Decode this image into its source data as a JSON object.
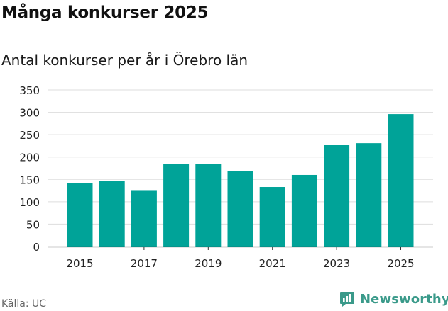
{
  "title": "Många konkurser 2025",
  "subtitle": "Antal konkurser per år i Örebro län",
  "source": "Källa: UC",
  "brand": {
    "name": "Newsworthy",
    "logo_icon": "newsworthy-chart-icon",
    "color": "#3a9a8a"
  },
  "colors": {
    "bar": "#00a398",
    "grid": "#dddddd",
    "axis": "#333333"
  },
  "chart_data": {
    "type": "bar",
    "title": "Många konkurser 2025",
    "subtitle": "Antal konkurser per år i Örebro län",
    "xlabel": "",
    "ylabel": "",
    "categories": [
      "2015",
      "2016",
      "2017",
      "2018",
      "2019",
      "2020",
      "2021",
      "2022",
      "2023",
      "2024",
      "2025"
    ],
    "values": [
      142,
      147,
      126,
      185,
      185,
      168,
      133,
      160,
      228,
      231,
      296
    ],
    "x_tick_labels": [
      "2015",
      "2017",
      "2019",
      "2021",
      "2023",
      "2025"
    ],
    "y_ticks": [
      0,
      50,
      100,
      150,
      200,
      250,
      300,
      350
    ],
    "ylim": [
      0,
      350
    ],
    "grid": true,
    "legend": "none"
  }
}
